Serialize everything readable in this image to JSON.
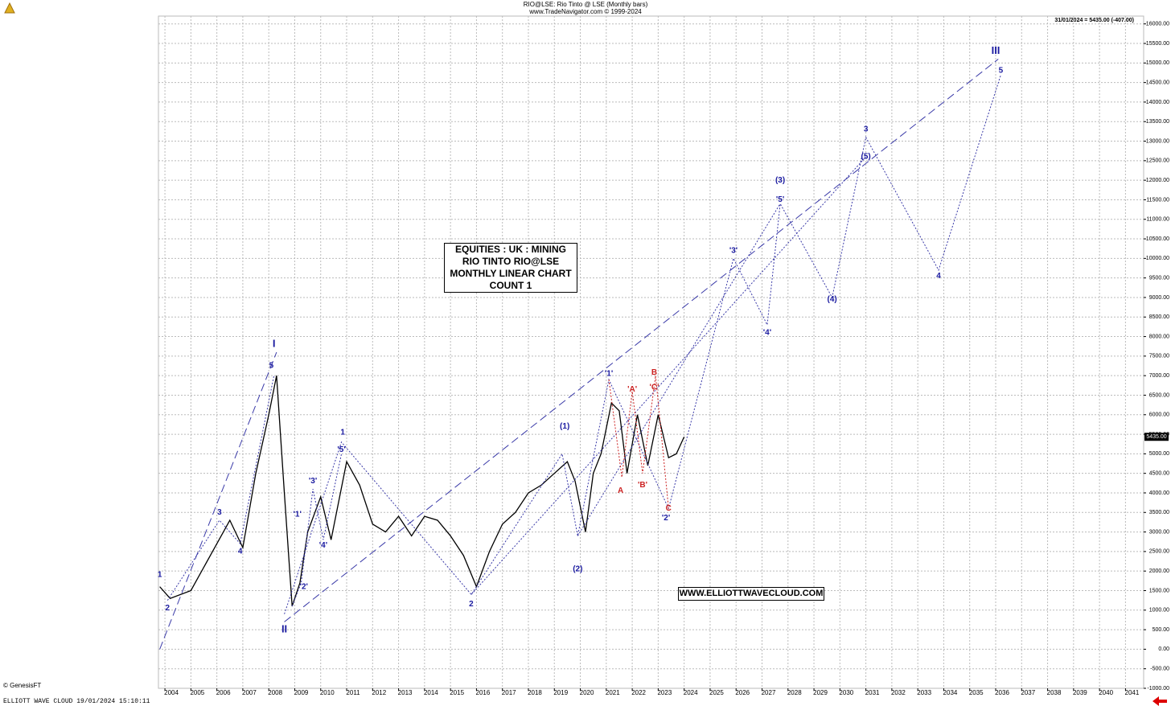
{
  "chart_data": {
    "type": "line",
    "title": "RIO@LSE:  Rio Tinto @ LSE  (Monthly bars)",
    "subtitle": "www.TradeNavigator.com © 1999-2024",
    "last_info": "31/01/2024 = 5435.00 (-407.00)",
    "box_lines": [
      "EQUITIES : UK : MINING",
      "RIO TINTO RIO@LSE",
      "MONTHLY LINEAR CHART",
      "COUNT 1"
    ],
    "website": "WWW.ELLIOTTWAVECLOUD.COM",
    "source": "© GenesisFT",
    "footer": "ELLIOTT WAVE CLOUD   19/01/2024 15:10:11",
    "last": {
      "value": 5435,
      "label": "5435.00"
    },
    "grid": true,
    "xlim": [
      2003.75,
      2041.7
    ],
    "ylim": [
      -1000,
      16200
    ],
    "xticks": [
      2004,
      2005,
      2006,
      2007,
      2008,
      2009,
      2010,
      2011,
      2012,
      2013,
      2014,
      2015,
      2016,
      2017,
      2018,
      2019,
      2020,
      2021,
      2022,
      2023,
      2024,
      2025,
      2026,
      2027,
      2028,
      2029,
      2030,
      2031,
      2032,
      2033,
      2034,
      2035,
      2036,
      2037,
      2038,
      2039,
      2040,
      2041
    ],
    "yticks": [
      {
        "value": -1000,
        "label": "-1000.00"
      },
      {
        "value": -500,
        "label": "-500.00"
      },
      {
        "value": 0,
        "label": "0.00"
      },
      {
        "value": 500,
        "label": "500.00"
      },
      {
        "value": 1000,
        "label": "1000.00"
      },
      {
        "value": 1500,
        "label": "1500.00"
      },
      {
        "value": 2000,
        "label": "2000.00"
      },
      {
        "value": 2500,
        "label": "2500.00"
      },
      {
        "value": 3000,
        "label": "3000.00"
      },
      {
        "value": 3500,
        "label": "3500.00"
      },
      {
        "value": 4000,
        "label": "4000.00"
      },
      {
        "value": 4500,
        "label": "4500.00"
      },
      {
        "value": 5000,
        "label": "5000.00"
      },
      {
        "value": 5500,
        "label": "5500.00"
      },
      {
        "value": 6000,
        "label": "6000.00"
      },
      {
        "value": 6500,
        "label": "6500.00"
      },
      {
        "value": 7000,
        "label": "7000.00"
      },
      {
        "value": 7500,
        "label": "7500.00"
      },
      {
        "value": 8000,
        "label": "8000.00"
      },
      {
        "value": 8500,
        "label": "8500.00"
      },
      {
        "value": 9000,
        "label": "9000.00"
      },
      {
        "value": 9500,
        "label": "9500.00"
      },
      {
        "value": 10000,
        "label": "10000.00"
      },
      {
        "value": 10500,
        "label": "10500.00"
      },
      {
        "value": 11000,
        "label": "11000.00"
      },
      {
        "value": 11500,
        "label": "11500.00"
      },
      {
        "value": 12000,
        "label": "12000.00"
      },
      {
        "value": 12500,
        "label": "12500.00"
      },
      {
        "value": 13000,
        "label": "13000.00"
      },
      {
        "value": 13500,
        "label": "13500.00"
      },
      {
        "value": 14000,
        "label": "14000.00"
      },
      {
        "value": 14500,
        "label": "14500.00"
      },
      {
        "value": 15000,
        "label": "15000.00"
      },
      {
        "value": 15500,
        "label": "15500.00"
      },
      {
        "value": 16000,
        "label": "16000.00"
      }
    ],
    "series": [
      {
        "color": "#000000",
        "style": "solid",
        "x": [
          2003.8,
          2004.2,
          2005,
          2006,
          2006.5,
          2007,
          2007.5,
          2008,
          2008.3,
          2008.6,
          2008.9,
          2009.2,
          2009.5,
          2010,
          2010.4,
          2011,
          2011.5,
          2012,
          2012.5,
          2013,
          2013.5,
          2014,
          2014.5,
          2015,
          2015.5,
          2016,
          2016.5,
          2017,
          2017.5,
          2018,
          2018.5,
          2019,
          2019.5,
          2019.8,
          2020.2,
          2020.5,
          2020.8,
          2021.2,
          2021.5,
          2021.8,
          2022.2,
          2022.6,
          2023,
          2023.4,
          2023.7,
          2024
        ],
        "values": [
          1600,
          1300,
          1500,
          2700,
          3300,
          2600,
          4500,
          6000,
          7000,
          4000,
          1100,
          1700,
          3000,
          3900,
          2800,
          4800,
          4200,
          3200,
          3000,
          3400,
          2900,
          3400,
          3300,
          2900,
          2400,
          1600,
          2500,
          3200,
          3500,
          4000,
          4200,
          4500,
          4800,
          4300,
          3000,
          4500,
          5000,
          6300,
          6100,
          4500,
          6000,
          4700,
          6000,
          4900,
          5000,
          5435
        ]
      },
      {
        "color": "#3a3aa8",
        "style": "dashed",
        "x": [
          2003.8,
          2008.3
        ],
        "values": [
          0,
          7600
        ]
      },
      {
        "color": "#3a3aa8",
        "style": "dashed",
        "x": [
          2008.6,
          2036.1
        ],
        "values": [
          700,
          15100
        ]
      },
      {
        "color": "#3a3aa8",
        "style": "dotted",
        "x": [
          2004.1,
          2006.1,
          2006.9,
          2008.2
        ],
        "values": [
          1250,
          3300,
          2700,
          7000
        ]
      },
      {
        "color": "#3a3aa8",
        "style": "dotted",
        "x": [
          2008.6,
          2010.8,
          2015.8,
          2019.3,
          2019.9,
          2021.1,
          2023.4,
          2025.9,
          2027.2,
          2027.7,
          2029.7,
          2031,
          2033.8,
          2036.2
        ],
        "values": [
          900,
          5300,
          1400,
          5000,
          2900,
          6900,
          3600,
          10000,
          8300,
          11400,
          9000,
          13100,
          9700,
          14700
        ]
      },
      {
        "color": "#3a3aa8",
        "style": "dotted",
        "x": [
          2008.9,
          2009.25,
          2009.7,
          2010.1,
          2010.8
        ],
        "values": [
          1100,
          1700,
          4100,
          2800,
          5000
        ]
      },
      {
        "color": "#3a3aa8",
        "style": "dotted",
        "x": [
          2019.9,
          2027.7
        ],
        "values": [
          2900,
          11400
        ]
      },
      {
        "color": "#3a3aa8",
        "style": "dotted",
        "x": [
          2015.8,
          2031
        ],
        "values": [
          1400,
          12600
        ]
      },
      {
        "color": "#cc2222",
        "style": "dotted",
        "x": [
          2021.1,
          2021.6,
          2022,
          2022.4,
          2022.9,
          2023.4
        ],
        "values": [
          6900,
          4400,
          6600,
          4500,
          7000,
          3600
        ]
      }
    ],
    "annotations": [
      {
        "text": "1",
        "x": 2003.8,
        "y": 1900,
        "color": "#1a1aa0"
      },
      {
        "text": "2",
        "x": 2004.1,
        "y": 1050,
        "color": "#1a1aa0"
      },
      {
        "text": "3",
        "x": 2006.1,
        "y": 3500,
        "color": "#1a1aa0"
      },
      {
        "text": "4",
        "x": 2006.9,
        "y": 2500,
        "color": "#1a1aa0"
      },
      {
        "text": "5",
        "x": 2008.1,
        "y": 7250,
        "color": "#1a1aa0"
      },
      {
        "text": "I",
        "x": 2008.2,
        "y": 7800,
        "color": "#1a1aa0"
      },
      {
        "text": "II",
        "x": 2008.6,
        "y": 500,
        "color": "#1a1aa0"
      },
      {
        "text": "'1'",
        "x": 2009.1,
        "y": 3450,
        "color": "#1a1aa0"
      },
      {
        "text": "'2'",
        "x": 2009.35,
        "y": 1600,
        "color": "#1a1aa0"
      },
      {
        "text": "'3'",
        "x": 2009.7,
        "y": 4300,
        "color": "#1a1aa0"
      },
      {
        "text": "'4'",
        "x": 2010.1,
        "y": 2650,
        "color": "#1a1aa0"
      },
      {
        "text": "'5'",
        "x": 2010.8,
        "y": 5100,
        "color": "#1a1aa0"
      },
      {
        "text": "1",
        "x": 2010.85,
        "y": 5550,
        "color": "#1a1aa0"
      },
      {
        "text": "2",
        "x": 2015.8,
        "y": 1150,
        "color": "#1a1aa0"
      },
      {
        "text": "(1)",
        "x": 2019.4,
        "y": 5700,
        "color": "#1a1aa0"
      },
      {
        "text": "(2)",
        "x": 2019.9,
        "y": 2050,
        "color": "#1a1aa0"
      },
      {
        "text": "'1'",
        "x": 2021.1,
        "y": 7050,
        "color": "#1a1aa0"
      },
      {
        "text": "'A'",
        "x": 2022,
        "y": 6650,
        "color": "#cc2222"
      },
      {
        "text": "B",
        "x": 2022.85,
        "y": 7080,
        "color": "#cc2222"
      },
      {
        "text": "'C'",
        "x": 2022.85,
        "y": 6700,
        "color": "#cc2222"
      },
      {
        "text": "A",
        "x": 2021.55,
        "y": 4050,
        "color": "#cc2222"
      },
      {
        "text": "'B'",
        "x": 2022.4,
        "y": 4200,
        "color": "#cc2222"
      },
      {
        "text": "C",
        "x": 2023.4,
        "y": 3600,
        "color": "#cc2222"
      },
      {
        "text": "'2'",
        "x": 2023.3,
        "y": 3350,
        "color": "#1a1aa0"
      },
      {
        "text": "'3'",
        "x": 2025.9,
        "y": 10200,
        "color": "#1a1aa0"
      },
      {
        "text": "'4'",
        "x": 2027.2,
        "y": 8100,
        "color": "#1a1aa0"
      },
      {
        "text": "(3)",
        "x": 2027.7,
        "y": 12000,
        "color": "#1a1aa0"
      },
      {
        "text": "'5'",
        "x": 2027.7,
        "y": 11500,
        "color": "#1a1aa0"
      },
      {
        "text": "(4)",
        "x": 2029.7,
        "y": 8950,
        "color": "#1a1aa0"
      },
      {
        "text": "3",
        "x": 2031,
        "y": 13300,
        "color": "#1a1aa0"
      },
      {
        "text": "(5)",
        "x": 2031,
        "y": 12600,
        "color": "#1a1aa0"
      },
      {
        "text": "4",
        "x": 2033.8,
        "y": 9550,
        "color": "#1a1aa0"
      },
      {
        "text": "III",
        "x": 2036,
        "y": 15300,
        "color": "#1a1aa0"
      },
      {
        "text": "5",
        "x": 2036.2,
        "y": 14800,
        "color": "#1a1aa0"
      }
    ]
  }
}
